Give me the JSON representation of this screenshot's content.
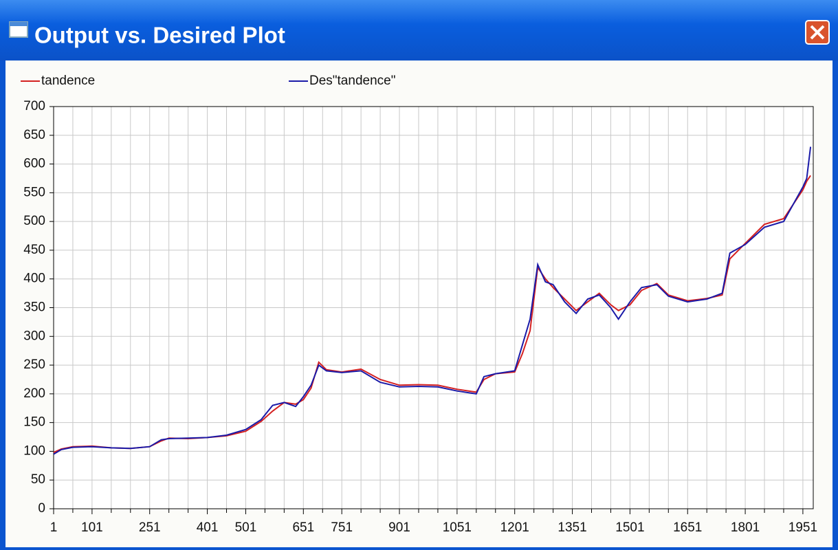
{
  "window": {
    "title": "Output vs. Desired Plot"
  },
  "chart_data": {
    "type": "line",
    "x": [
      1,
      21,
      51,
      101,
      151,
      201,
      251,
      281,
      301,
      351,
      401,
      451,
      501,
      541,
      571,
      601,
      631,
      651,
      671,
      691,
      711,
      751,
      801,
      851,
      901,
      951,
      1001,
      1051,
      1101,
      1121,
      1151,
      1201,
      1221,
      1241,
      1261,
      1281,
      1301,
      1331,
      1361,
      1391,
      1421,
      1451,
      1471,
      1501,
      1531,
      1571,
      1601,
      1651,
      1701,
      1741,
      1761,
      1801,
      1851,
      1901,
      1951,
      1961,
      1971
    ],
    "series": [
      {
        "name": "tandence",
        "color": "#d42020",
        "values": [
          98,
          104,
          108,
          109,
          106,
          105,
          108,
          118,
          123,
          122,
          124,
          127,
          135,
          152,
          170,
          185,
          182,
          190,
          210,
          255,
          242,
          238,
          243,
          225,
          215,
          216,
          215,
          208,
          203,
          225,
          235,
          238,
          270,
          310,
          420,
          400,
          385,
          365,
          345,
          360,
          375,
          355,
          345,
          355,
          380,
          392,
          372,
          362,
          366,
          372,
          435,
          462,
          495,
          505,
          555,
          570,
          580
        ]
      },
      {
        "name": "Des\"tandence\"",
        "color": "#1a1aa8",
        "values": [
          95,
          103,
          107,
          108,
          106,
          105,
          108,
          120,
          122,
          123,
          124,
          128,
          138,
          155,
          180,
          185,
          178,
          195,
          215,
          250,
          240,
          237,
          240,
          220,
          212,
          213,
          212,
          205,
          200,
          230,
          235,
          240,
          285,
          330,
          425,
          395,
          390,
          360,
          340,
          365,
          372,
          350,
          330,
          360,
          385,
          390,
          370,
          360,
          365,
          375,
          445,
          460,
          490,
          500,
          560,
          575,
          630
        ]
      }
    ],
    "xlim": [
      1,
      1978
    ],
    "xticks": [
      1,
      101,
      251,
      401,
      501,
      651,
      751,
      901,
      1051,
      1201,
      1351,
      1501,
      1651,
      1801,
      1951
    ],
    "xminorticks": [
      51,
      151,
      201,
      301,
      351,
      451,
      551,
      601,
      701,
      801,
      851,
      951,
      1001,
      1101,
      1151,
      1251,
      1301,
      1401,
      1451,
      1551,
      1601,
      1701,
      1751,
      1851,
      1901
    ],
    "ylim": [
      0,
      700
    ],
    "yticks": [
      0,
      50,
      100,
      150,
      200,
      250,
      300,
      350,
      400,
      450,
      500,
      550,
      600,
      650,
      700
    ],
    "grid": true,
    "legend": "top"
  }
}
